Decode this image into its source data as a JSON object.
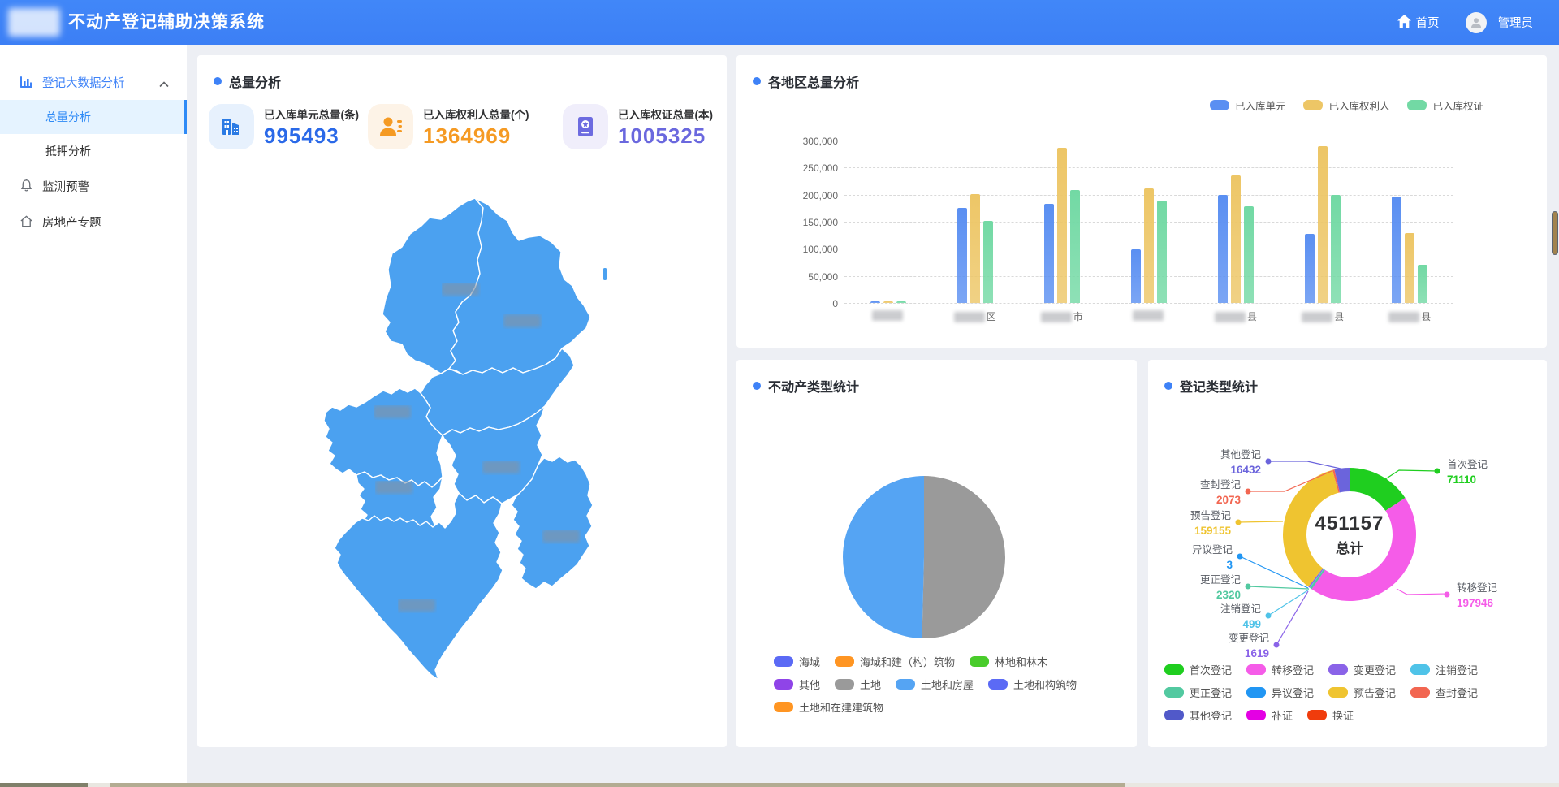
{
  "header": {
    "title": "不动产登记辅助决策系统",
    "home_label": "首页",
    "user_label": "管理员"
  },
  "sidebar": {
    "section": {
      "label": "登记大数据分析",
      "icon": "bar-chart-icon",
      "expanded": true
    },
    "children": [
      {
        "label": "总量分析",
        "active": true
      },
      {
        "label": "抵押分析",
        "active": false
      }
    ],
    "items": [
      {
        "label": "监测预警",
        "icon": "bell-icon"
      },
      {
        "label": "房地产专题",
        "icon": "home-icon"
      }
    ]
  },
  "overview_panel": {
    "title": "总量分析",
    "cards": [
      {
        "label": "已入库单元总量(条)",
        "value": "995493",
        "value_color": "#2A69E8",
        "icon": "building-icon",
        "icon_bg": "#E7F1FD",
        "icon_color": "#2B7BE4"
      },
      {
        "label": "已入库权利人总量(个)",
        "value": "1364969",
        "value_color": "#F59A23",
        "icon": "person-icon",
        "icon_bg": "#FDF3E7",
        "icon_color": "#F59A23"
      },
      {
        "label": "已入库权证总量(本)",
        "value": "1005325",
        "value_color": "#6A68DE",
        "icon": "certificate-icon",
        "icon_bg": "#F0EEFB",
        "icon_color": "#6D6BE0"
      }
    ],
    "map": {
      "fill_color": "#4BA1F0",
      "note": "district name labels blurred"
    }
  },
  "region_panel": {
    "title": "各地区总量分析",
    "chart_data": {
      "type": "bar",
      "categories_blurred": true,
      "category_suffixes": [
        "",
        "区",
        "市",
        "",
        "县",
        "县",
        "县"
      ],
      "series": [
        {
          "name": "已入库单元",
          "color": "#5A8FF2",
          "values": [
            3500,
            175000,
            183000,
            99000,
            200000,
            128000,
            197000
          ]
        },
        {
          "name": "已入库权利人",
          "color": "#EDC666",
          "values": [
            1000,
            201000,
            286000,
            211000,
            236000,
            290000,
            129000
          ]
        },
        {
          "name": "已入库权证",
          "color": "#72D9A4",
          "values": [
            800,
            152000,
            208000,
            189000,
            178000,
            199000,
            70000
          ]
        }
      ],
      "ylim": [
        0,
        300000
      ],
      "ytick_labels": [
        "300,000",
        "250,000",
        "200,000",
        "150,000",
        "100,000",
        "50,000",
        "0"
      ],
      "grid": "dashed",
      "legend_position": "top-right"
    }
  },
  "pie_panel": {
    "title": "不动产类型统计",
    "chart_data": {
      "type": "pie",
      "slices": [
        {
          "label": "土地",
          "percent": 50.4,
          "color": "#9A9A9A"
        },
        {
          "label": "土地和房屋",
          "percent": 49.6,
          "color": "#55A4F3"
        }
      ],
      "legend": [
        {
          "label": "海域",
          "color": "#5B6AF5"
        },
        {
          "label": "海域和建（构）筑物",
          "color": "#FF9522"
        },
        {
          "label": "林地和林木",
          "color": "#49CC2B"
        },
        {
          "label": "其他",
          "color": "#8F44E8"
        },
        {
          "label": "土地",
          "color": "#9A9A9A"
        },
        {
          "label": "土地和房屋",
          "color": "#55A4F3"
        },
        {
          "label": "土地和构筑物",
          "color": "#5B6AF5"
        },
        {
          "label": "土地和在建建筑物",
          "color": "#FF9522"
        }
      ]
    }
  },
  "donut_panel": {
    "title": "登记类型统计",
    "center_value": "451157",
    "center_label": "总计",
    "chart_data": {
      "type": "donut",
      "total": 451157,
      "slices": [
        {
          "label": "首次登记",
          "value": 71110,
          "color": "#1FCE1F"
        },
        {
          "label": "转移登记",
          "value": 197946,
          "color": "#F55CE8"
        },
        {
          "label": "异议登记",
          "value": 3,
          "color": "#2196F3"
        },
        {
          "label": "更正登记",
          "value": 2320,
          "color": "#52C9A0"
        },
        {
          "label": "注销登记",
          "value": 499,
          "color": "#4FC3E8"
        },
        {
          "label": "变更登记",
          "value": 1619,
          "color": "#8A63E8"
        },
        {
          "label": "预告登记",
          "value": 159155,
          "color": "#EFC430"
        },
        {
          "label": "查封登记",
          "value": 2073,
          "color": "#F26651"
        },
        {
          "label": "其他登记",
          "value": 16432,
          "color": "#6B64DC"
        }
      ],
      "legend": [
        {
          "label": "首次登记",
          "color": "#1FCE1F"
        },
        {
          "label": "转移登记",
          "color": "#F55CE8"
        },
        {
          "label": "变更登记",
          "color": "#8A63E8"
        },
        {
          "label": "注销登记",
          "color": "#4FC3E8"
        },
        {
          "label": "更正登记",
          "color": "#52C9A0"
        },
        {
          "label": "异议登记",
          "color": "#2196F3"
        },
        {
          "label": "预告登记",
          "color": "#EFC430"
        },
        {
          "label": "查封登记",
          "color": "#F26651"
        },
        {
          "label": "其他登记",
          "color": "#5159C9"
        },
        {
          "label": "补证",
          "color": "#E400E4"
        },
        {
          "label": "换证",
          "color": "#F03C0C"
        }
      ]
    }
  }
}
